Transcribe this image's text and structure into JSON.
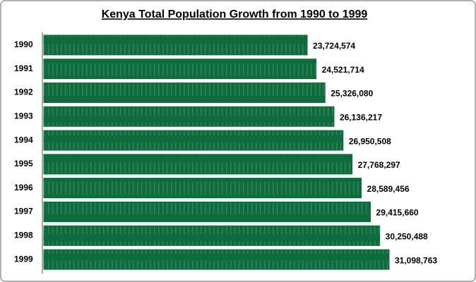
{
  "chart_data": {
    "type": "bar",
    "orientation": "horizontal",
    "title": "Kenya Total Population Growth from 1990 to 1999",
    "categories": [
      "1990",
      "1991",
      "1992",
      "1993",
      "1994",
      "1995",
      "1996",
      "1997",
      "1998",
      "1999"
    ],
    "values": [
      23724574,
      24521714,
      25326080,
      26136217,
      26950508,
      27768297,
      28589456,
      29415660,
      30250488,
      31098763
    ],
    "value_labels": [
      "23,724,574",
      "24,521,714",
      "25,326,080",
      "26,136,217",
      "26,950,508",
      "27,768,297",
      "28,589,456",
      "29,415,660",
      "30,250,488",
      "31,098,763"
    ],
    "color": "#0d6b3c"
  }
}
